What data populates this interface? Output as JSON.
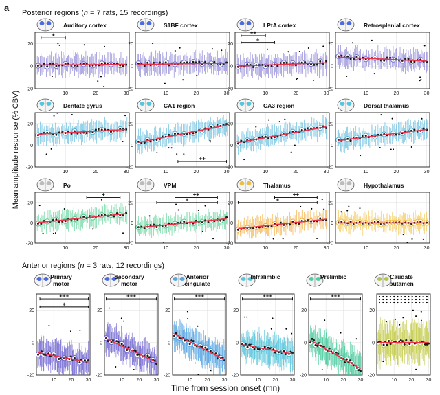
{
  "figure": {
    "panel_letter": "a",
    "posterior_title": "Posterior regions (n = 7 rats, 15 recordings)",
    "posterior_title_parts": [
      "Posterior regions (",
      "n",
      " = 7 rats, 15 recordings)"
    ],
    "anterior_title": "Anterior regions (n = 3 rats, 12 recordings)",
    "anterior_title_parts": [
      "Anterior regions (",
      "n",
      " = 3 rats, 12 recordings)"
    ],
    "ylabel": "Mean amplitude response (% CBV)",
    "xlabel": "Time from session onset (mn)"
  },
  "colors": {
    "trend": "#e8324a",
    "mean_dot": "#1a1a1a",
    "outlier": "#000000",
    "frame": "#222222",
    "grid": "#dddddd",
    "sig_bar": "#000000"
  },
  "chart_data": [
    {
      "type": "scatter",
      "id": "auditory",
      "title": "Auditory cortex",
      "color": "#7b72d0",
      "region_color": "#3b5bdb",
      "x": [
        1,
        30
      ],
      "y_intercept": 1,
      "y_slope": 0.02,
      "xlim": [
        0,
        31
      ],
      "ylim": [
        -20,
        30
      ],
      "yticks": [
        -20,
        0,
        20
      ],
      "xticks": [
        10,
        20,
        30
      ],
      "sig": [
        {
          "from": 2,
          "to": 10,
          "y": 25,
          "label": "+"
        }
      ]
    },
    {
      "type": "scatter",
      "id": "s1bf",
      "title": "S1BF cortex",
      "color": "#7b72d0",
      "region_color": "#3b5bdb",
      "x": [
        1,
        30
      ],
      "y_intercept": 1.5,
      "y_slope": 0.04,
      "xlim": [
        0,
        31
      ],
      "ylim": [
        -20,
        30
      ],
      "yticks": [
        -20,
        0,
        20
      ],
      "xticks": [
        10,
        20,
        30
      ],
      "sig": []
    },
    {
      "type": "scatter",
      "id": "lpta",
      "title": "LPtA cortex",
      "color": "#7b72d0",
      "region_color": "#3b5bdb",
      "x": [
        1,
        30
      ],
      "y_intercept": 0,
      "y_slope": 0.1,
      "xlim": [
        0,
        31
      ],
      "ylim": [
        -20,
        30
      ],
      "yticks": [
        -20,
        0,
        20
      ],
      "xticks": [
        10,
        20,
        30
      ],
      "sig": [
        {
          "from": 2,
          "to": 10,
          "y": 27,
          "label": "++"
        },
        {
          "from": 2,
          "to": 13,
          "y": 21,
          "label": "+"
        }
      ]
    },
    {
      "type": "scatter",
      "id": "retrosplenial",
      "title": "Retrosplenial cortex",
      "color": "#7b72d0",
      "region_color": "#3b5bdb",
      "x": [
        1,
        30
      ],
      "y_intercept": 8,
      "y_slope": -0.12,
      "xlim": [
        0,
        31
      ],
      "ylim": [
        -20,
        30
      ],
      "yticks": [
        -20,
        0,
        20
      ],
      "xticks": [
        10,
        20,
        30
      ],
      "sig": []
    },
    {
      "type": "scatter",
      "id": "dentate",
      "title": "Dentate gyrus",
      "color": "#4fb3d9",
      "region_color": "#48c0d8",
      "x": [
        1,
        30
      ],
      "y_intercept": 10,
      "y_slope": 0.15,
      "xlim": [
        0,
        31
      ],
      "ylim": [
        -20,
        30
      ],
      "yticks": [
        -20,
        0,
        20
      ],
      "xticks": [
        10,
        20,
        30
      ],
      "sig": []
    },
    {
      "type": "scatter",
      "id": "ca1",
      "title": "CA1 region",
      "color": "#4fb3d9",
      "region_color": "#48c0d8",
      "x": [
        1,
        30
      ],
      "y_intercept": 2,
      "y_slope": 0.55,
      "xlim": [
        0,
        31
      ],
      "ylim": [
        -20,
        30
      ],
      "yticks": [
        -20,
        0,
        20
      ],
      "xticks": [
        10,
        20,
        30
      ],
      "sig": [
        {
          "from": 14,
          "to": 30,
          "y": -15,
          "label": "++"
        }
      ]
    },
    {
      "type": "scatter",
      "id": "ca3",
      "title": "CA3 region",
      "color": "#4fb3d9",
      "region_color": "#48c0d8",
      "x": [
        1,
        30
      ],
      "y_intercept": 2,
      "y_slope": 0.5,
      "xlim": [
        0,
        31
      ],
      "ylim": [
        -20,
        30
      ],
      "yticks": [
        -20,
        0,
        20
      ],
      "xticks": [
        10,
        20,
        30
      ],
      "sig": []
    },
    {
      "type": "scatter",
      "id": "dorsal_thalamus",
      "title": "Dorsal thalamus",
      "color": "#4fb3d9",
      "region_color": "#48c0d8",
      "x": [
        1,
        30
      ],
      "y_intercept": 4,
      "y_slope": 0.35,
      "xlim": [
        0,
        31
      ],
      "ylim": [
        -20,
        30
      ],
      "yticks": [
        -20,
        0,
        20
      ],
      "xticks": [
        10,
        20,
        30
      ],
      "sig": []
    },
    {
      "type": "scatter",
      "id": "po",
      "title": "Po",
      "color": "#4fcf8f",
      "region_color": "#b5b5b5",
      "x": [
        1,
        30
      ],
      "y_intercept": 0,
      "y_slope": 0.3,
      "xlim": [
        0,
        31
      ],
      "ylim": [
        -20,
        30
      ],
      "yticks": [
        -20,
        0,
        20
      ],
      "xticks": [
        10,
        20,
        30
      ],
      "sig": [
        {
          "from": 17,
          "to": 28,
          "y": 25,
          "label": "+"
        }
      ]
    },
    {
      "type": "scatter",
      "id": "vpm",
      "title": "VPM",
      "color": "#4fcf8f",
      "region_color": "#b5b5b5",
      "x": [
        1,
        30
      ],
      "y_intercept": -5,
      "y_slope": 0.3,
      "xlim": [
        0,
        31
      ],
      "ylim": [
        -20,
        30
      ],
      "yticks": [
        -20,
        0,
        20
      ],
      "xticks": [
        10,
        20,
        30
      ],
      "sig": [
        {
          "from": 13,
          "to": 27,
          "y": 25,
          "label": "++"
        },
        {
          "from": 7,
          "to": 27,
          "y": 20,
          "label": "+"
        }
      ]
    },
    {
      "type": "scatter",
      "id": "thalamus",
      "title": "Thalamus",
      "color": "#f0a830",
      "region_color": "#e8b830",
      "x": [
        1,
        30
      ],
      "y_intercept": -6,
      "y_slope": 0.32,
      "xlim": [
        0,
        31
      ],
      "ylim": [
        -20,
        30
      ],
      "yticks": [
        -20,
        0,
        20
      ],
      "xticks": [
        10,
        20,
        30
      ],
      "sig": [
        {
          "from": 13,
          "to": 27,
          "y": 25,
          "label": "++"
        },
        {
          "from": 1,
          "to": 27,
          "y": 20,
          "label": "+"
        }
      ]
    },
    {
      "type": "scatter",
      "id": "hypothalamus",
      "title": "Hypothalamus",
      "color": "#f0c040",
      "region_color": "#b5b5b5",
      "x": [
        1,
        30
      ],
      "y_intercept": 0,
      "y_slope": 0,
      "xlim": [
        0,
        31
      ],
      "ylim": [
        -20,
        30
      ],
      "yticks": [
        -20,
        0,
        20
      ],
      "xticks": [
        10,
        20,
        30
      ],
      "sig": []
    },
    {
      "type": "scatter",
      "id": "primary_motor",
      "title": "Primary motor",
      "title_lines": [
        "Primary",
        "motor"
      ],
      "color": "#6a5fcf",
      "region_color": "#3b5bdb",
      "x": [
        1,
        30
      ],
      "y_intercept": -6,
      "y_slope": -0.2,
      "xlim": [
        0,
        31
      ],
      "ylim": [
        -20,
        30
      ],
      "yticks": [
        -20,
        0,
        20
      ],
      "xticks": [
        10,
        20,
        30
      ],
      "sig": [
        {
          "from": 2,
          "to": 30,
          "y": 27,
          "label": "+++"
        },
        {
          "from": 2,
          "to": 30,
          "y": 22,
          "label": "+"
        }
      ]
    },
    {
      "type": "scatter",
      "id": "secondary_motor",
      "title": "Secondary motor",
      "title_lines": [
        "Secondary",
        "motor"
      ],
      "color": "#6a5fcf",
      "region_color": "#3b5bdb",
      "x": [
        1,
        30
      ],
      "y_intercept": 3,
      "y_slope": -0.5,
      "xlim": [
        0,
        31
      ],
      "ylim": [
        -20,
        30
      ],
      "yticks": [
        -20,
        0,
        20
      ],
      "xticks": [
        10,
        20,
        30
      ],
      "sig": [
        {
          "from": 1,
          "to": 30,
          "y": 27,
          "label": "+++"
        }
      ]
    },
    {
      "type": "scatter",
      "id": "anterior_cingulate",
      "title": "Anterior cingulate",
      "title_lines": [
        "Anterior",
        "cingulate"
      ],
      "color": "#4a9fe0",
      "region_color": "#48a0e0",
      "x": [
        1,
        30
      ],
      "y_intercept": 6,
      "y_slope": -0.55,
      "xlim": [
        0,
        31
      ],
      "ylim": [
        -20,
        30
      ],
      "yticks": [
        -20,
        0,
        20
      ],
      "xticks": [
        10,
        20,
        30
      ],
      "sig": [
        {
          "from": 1,
          "to": 30,
          "y": 27,
          "label": "+++"
        }
      ]
    },
    {
      "type": "scatter",
      "id": "infralimbic",
      "title": "Infralimbic",
      "title_lines": [
        "Infralimbic"
      ],
      "color": "#48c0d8",
      "region_color": "#48c0d8",
      "x": [
        1,
        30
      ],
      "y_intercept": -1,
      "y_slope": -0.2,
      "xlim": [
        0,
        31
      ],
      "ylim": [
        -20,
        30
      ],
      "yticks": [
        -20,
        0,
        20
      ],
      "xticks": [
        10,
        20,
        30
      ],
      "sig": [
        {
          "from": 1,
          "to": 30,
          "y": 27,
          "label": "+++"
        }
      ]
    },
    {
      "type": "scatter",
      "id": "prelimbic",
      "title": "Prelimbic",
      "title_lines": [
        "Prelimbic"
      ],
      "color": "#40c898",
      "region_color": "#40c898",
      "x": [
        1,
        30
      ],
      "y_intercept": 2,
      "y_slope": -0.6,
      "xlim": [
        0,
        31
      ],
      "ylim": [
        -20,
        30
      ],
      "yticks": [
        -20,
        0,
        20
      ],
      "xticks": [
        10,
        20,
        30
      ],
      "sig": [
        {
          "from": 1,
          "to": 30,
          "y": 27,
          "label": "+++"
        }
      ]
    },
    {
      "type": "scatter",
      "id": "caudate_putamen",
      "title": "Caudate putamen",
      "title_lines": [
        "Caudate",
        "putamen"
      ],
      "color": "#c0c840",
      "region_color": "#a8c040",
      "x": [
        1,
        30
      ],
      "y_intercept": 0,
      "y_slope": 0,
      "xlim": [
        0,
        31
      ],
      "ylim": [
        -20,
        30
      ],
      "yticks": [
        -20,
        0,
        20
      ],
      "xticks": [
        10,
        20,
        30
      ],
      "sig": []
    }
  ]
}
